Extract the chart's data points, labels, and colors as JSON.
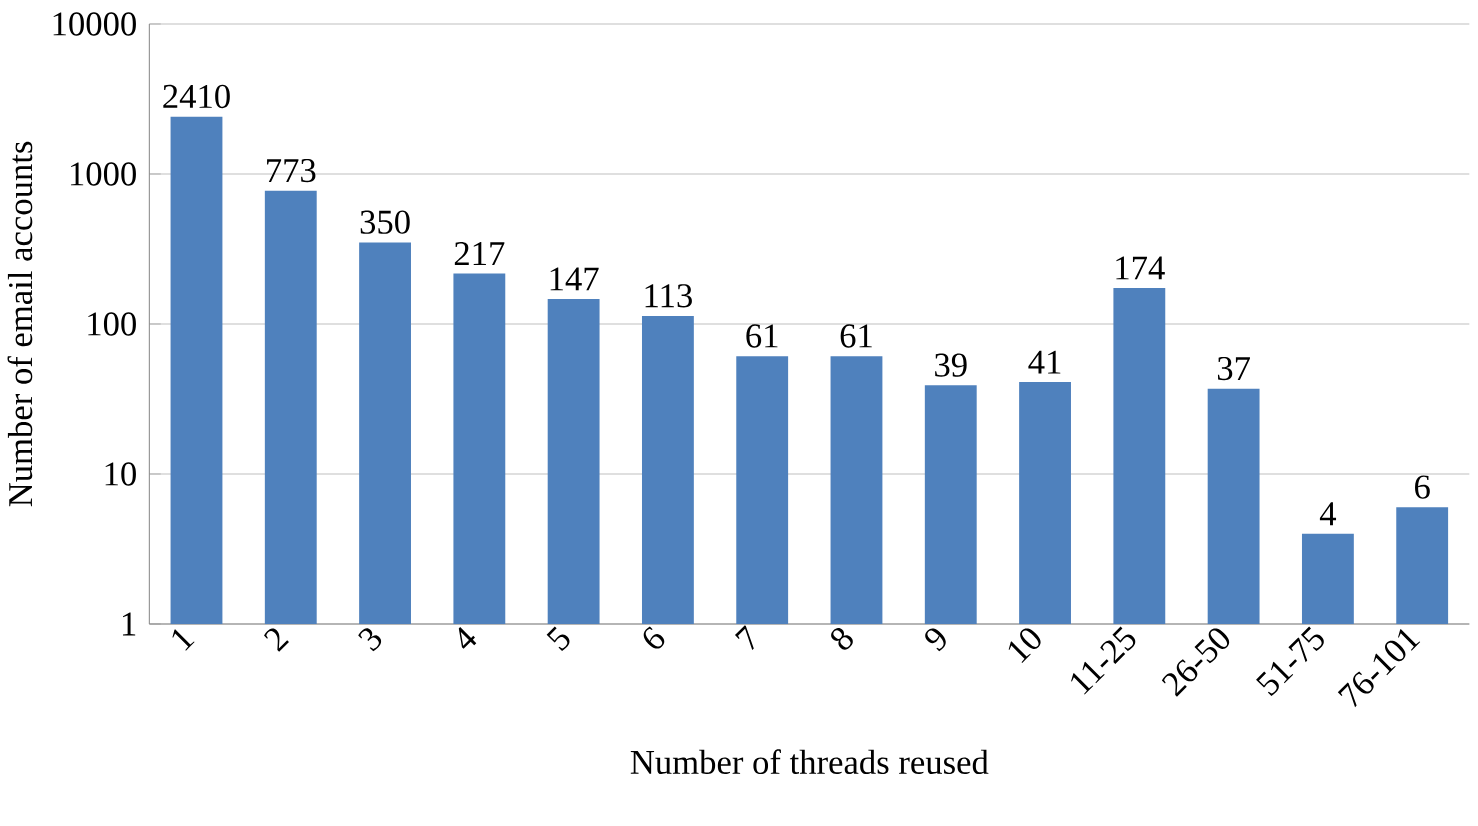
{
  "chart_data": {
    "type": "bar",
    "xlabel": "Number of threads reused",
    "ylabel": "Number of email accounts",
    "categories": [
      "1",
      "2",
      "3",
      "4",
      "5",
      "6",
      "7",
      "8",
      "9",
      "10",
      "11-25",
      "26-50",
      "51-75",
      "76-101"
    ],
    "values": [
      2410,
      773,
      350,
      217,
      147,
      113,
      61,
      61,
      39,
      41,
      174,
      37,
      4,
      6
    ],
    "color": "#4f81bd",
    "log": "y",
    "ylim": [
      1,
      10000
    ],
    "yticks": [
      1,
      10,
      100,
      1000,
      10000
    ],
    "grid": "y",
    "data_labels": true
  }
}
